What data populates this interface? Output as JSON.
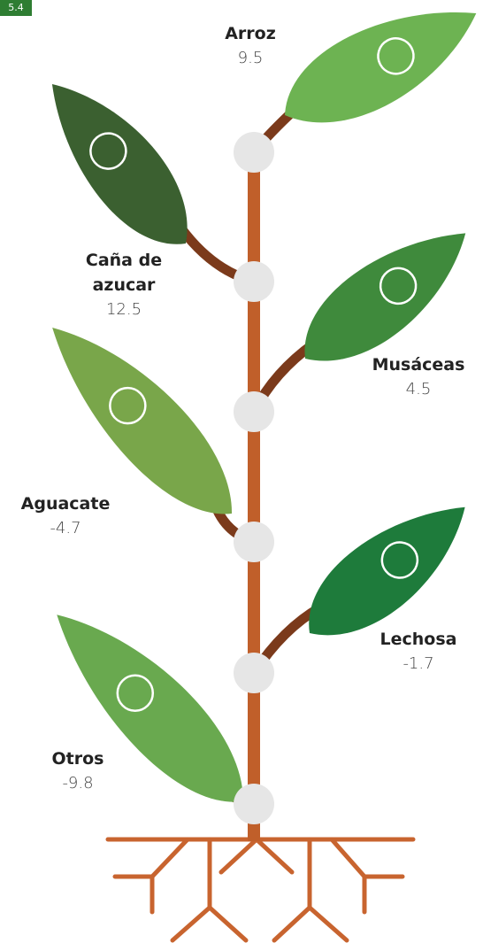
{
  "badge": "5.4",
  "items": [
    {
      "label": "Arroz",
      "value": 9.5
    },
    {
      "label": "Caña de azucar",
      "value": 12.5
    },
    {
      "label": "Musáceas",
      "value": 4.5
    },
    {
      "label": "Aguacate",
      "value": -4.7
    },
    {
      "label": "Lechosa",
      "value": -1.7
    },
    {
      "label": "Otros",
      "value": -9.8
    }
  ]
}
